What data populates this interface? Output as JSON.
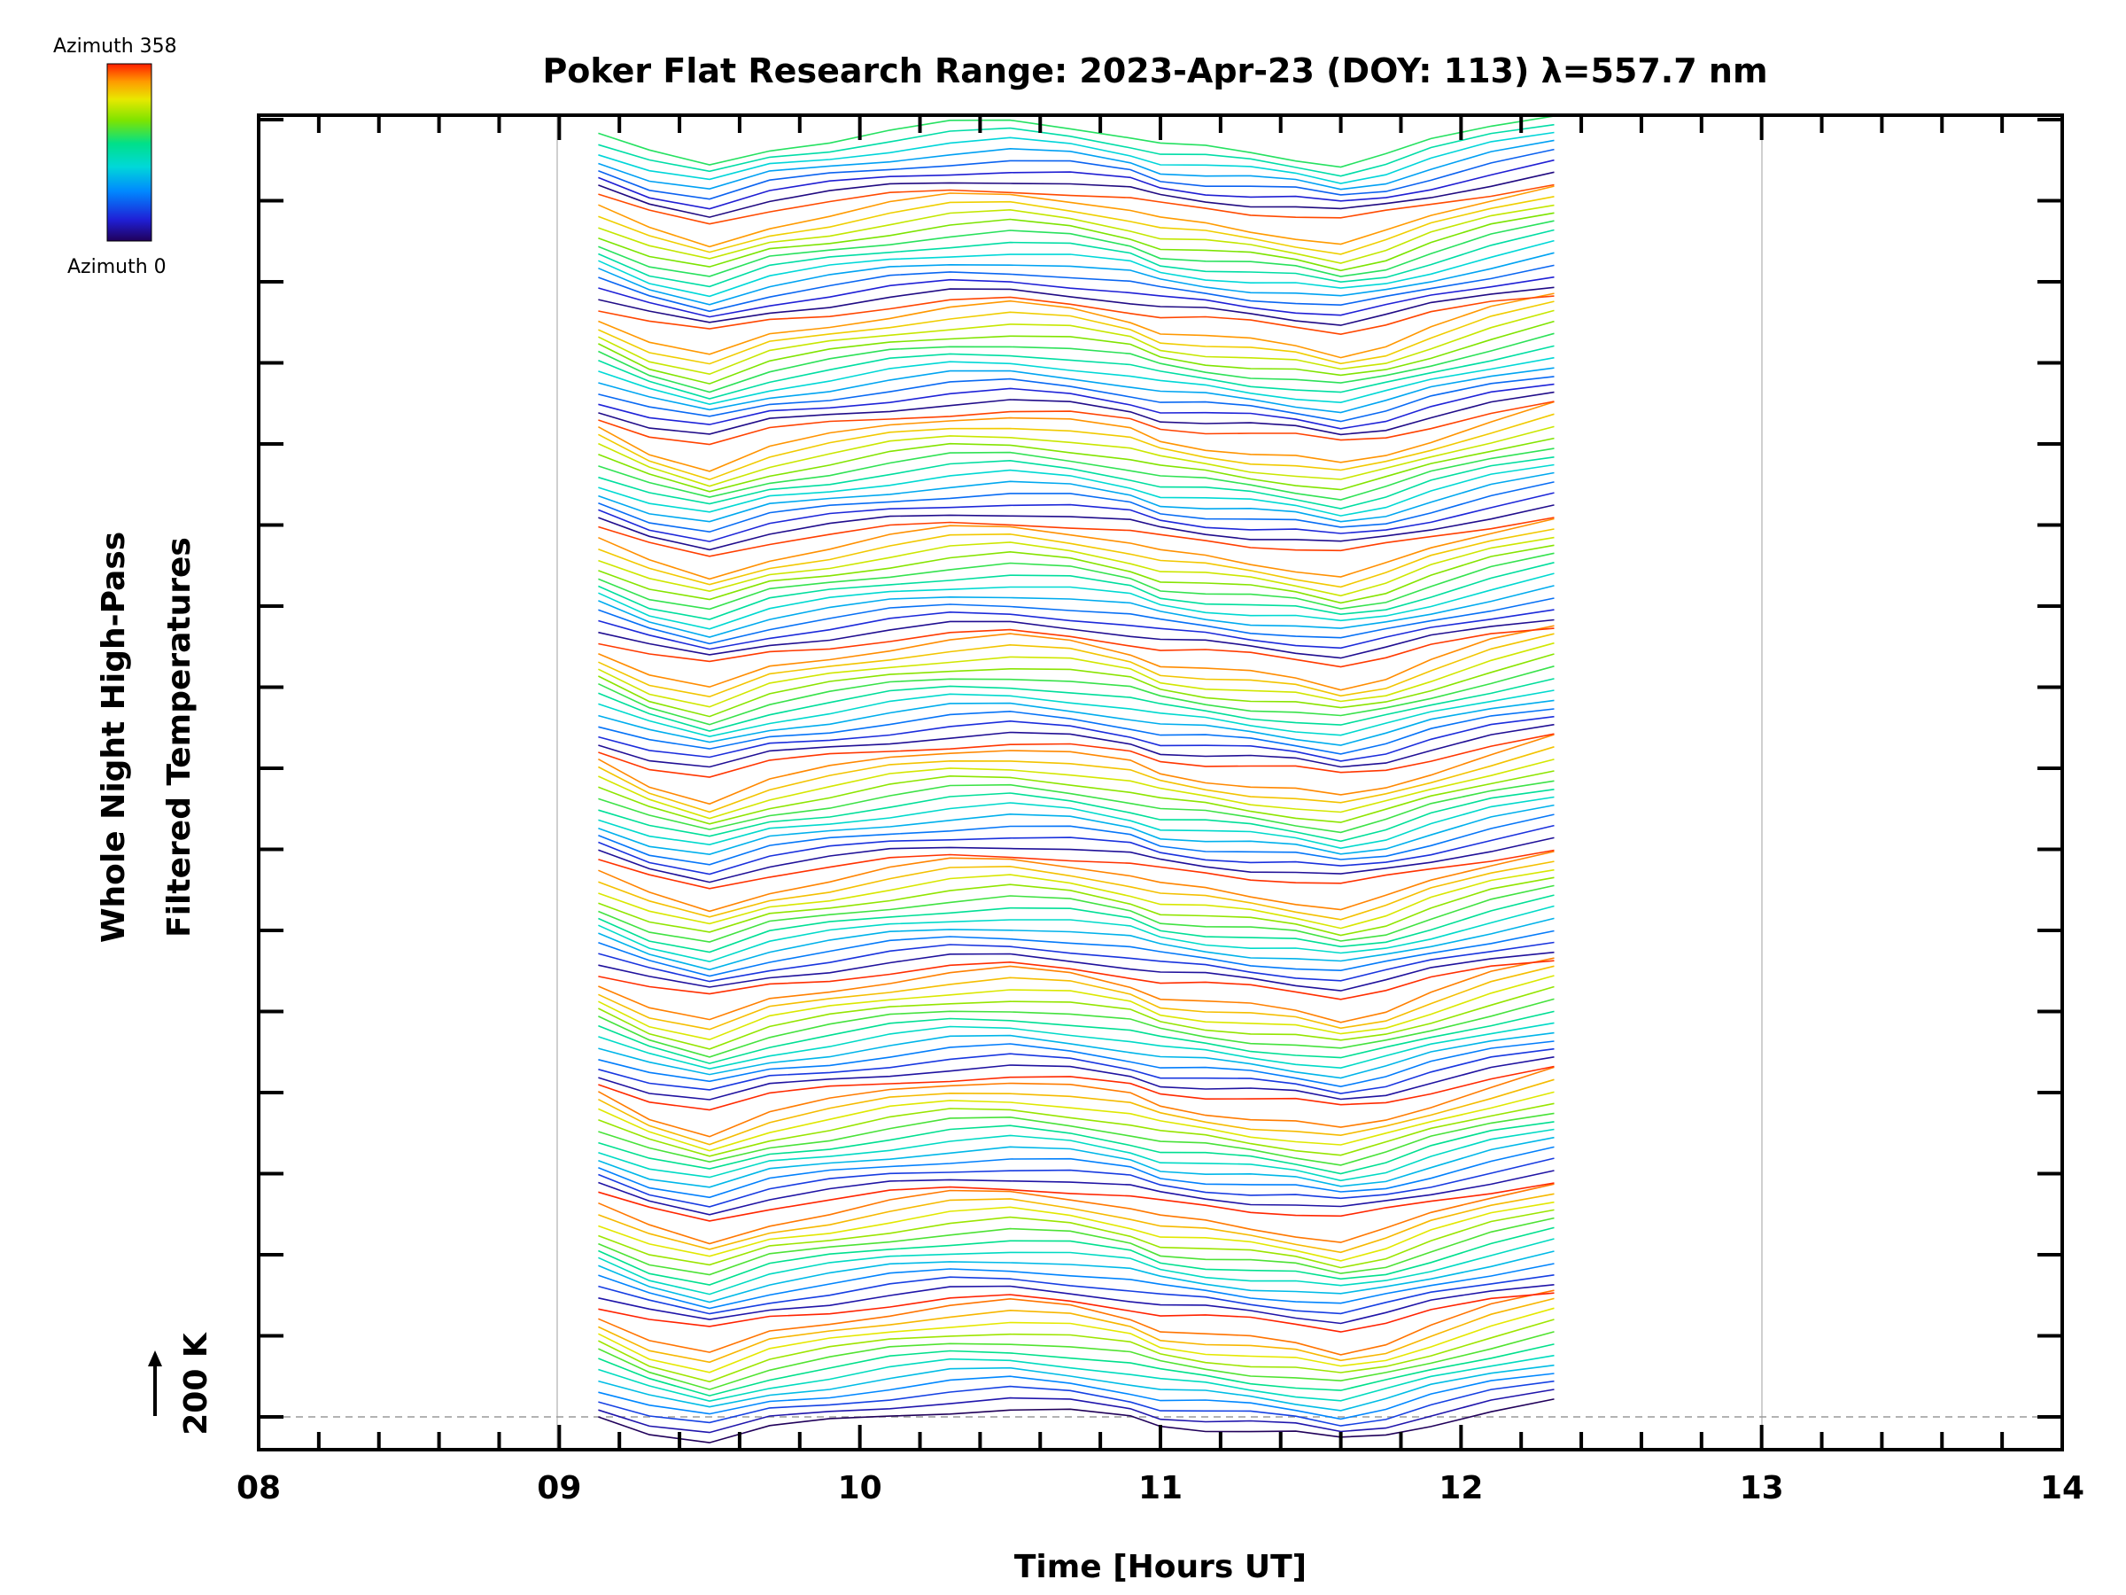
{
  "chart_data": {
    "type": "line",
    "title": "Poker Flat Research Range: 2023-Apr-23 (DOY: 113) λ=557.7 nm",
    "xlabel": "Time [Hours UT]",
    "ylabel": [
      "Whole Night High-Pass",
      "Filtered Temperatures"
    ],
    "scale_label": "200 K",
    "xlim": [
      8,
      14
    ],
    "x_ticks": [
      "08",
      "09",
      "10",
      "11",
      "12",
      "13",
      "14"
    ],
    "grid": "vertical lines at 09 and 13; dashed baseline",
    "colorbar": {
      "top_label": "Azimuth 358",
      "bottom_label": "Azimuth 0",
      "colors": [
        "#20005a",
        "#1f1fd6",
        "#0088ff",
        "#00d8d8",
        "#00e08a",
        "#7de400",
        "#e8e800",
        "#ff9a00",
        "#ff1e00"
      ]
    },
    "series_summary": {
      "traces": 140,
      "azimuth_range": [
        0,
        358
      ],
      "x_start": 9.13,
      "x_end": 12.31,
      "time_samples": [
        9.13,
        9.3,
        9.5,
        9.7,
        9.9,
        10.1,
        10.3,
        10.5,
        10.7,
        10.9,
        11.0,
        11.15,
        11.3,
        11.45,
        11.6,
        11.75,
        11.9,
        12.1,
        12.31
      ],
      "common_shape": [
        0,
        18,
        30,
        14,
        6,
        -2,
        -8,
        -10,
        -6,
        2,
        10,
        14,
        18,
        22,
        28,
        20,
        8,
        -6,
        -18
      ],
      "dark_band_offsets": [
        0,
        10,
        20,
        32,
        44,
        58,
        72,
        86,
        100,
        114,
        128
      ]
    }
  }
}
